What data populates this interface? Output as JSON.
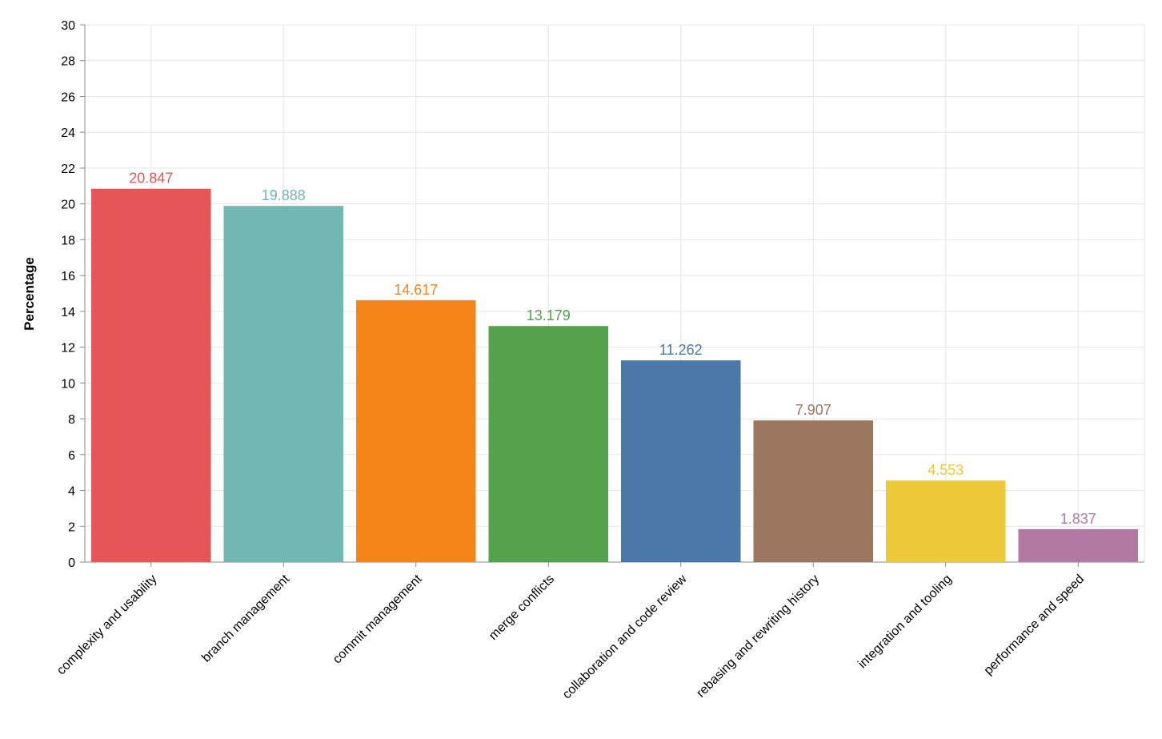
{
  "chart_data": {
    "type": "bar",
    "title": "",
    "xlabel": "",
    "ylabel": "Percentage",
    "ylim": [
      0,
      30
    ],
    "y_ticks": [
      0,
      2,
      4,
      6,
      8,
      10,
      12,
      14,
      16,
      18,
      20,
      22,
      24,
      26,
      28,
      30
    ],
    "grid": true,
    "legend": "none",
    "categories": [
      "complexity and usability",
      "branch management",
      "commit management",
      "merge conflicts",
      "collaboration and code review",
      "rebasing and rewriting history",
      "integration and tooling",
      "performance and speed"
    ],
    "values": [
      20.847,
      19.888,
      14.617,
      13.179,
      11.262,
      7.907,
      4.553,
      1.837
    ],
    "value_labels": [
      "20.847",
      "19.888",
      "14.617",
      "13.179",
      "11.262",
      "7.907",
      "4.553",
      "1.837"
    ],
    "colors": [
      "#e45756",
      "#72b7b2",
      "#f58518",
      "#54a24b",
      "#4c78a8",
      "#9d7660",
      "#eeca3b",
      "#b279a2"
    ]
  }
}
